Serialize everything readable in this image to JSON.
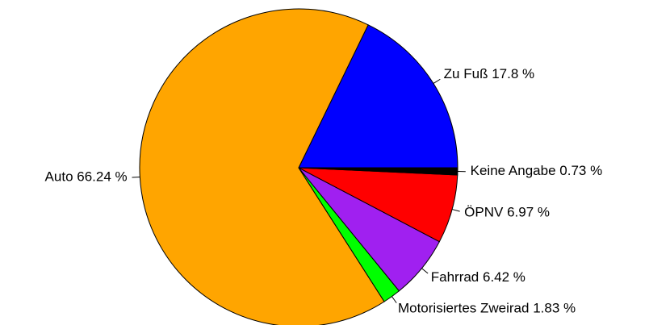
{
  "chart_data": {
    "type": "pie",
    "categories": [
      "Zu Fuß",
      "Auto",
      "Motorisiertes Zweirad",
      "Fahrrad",
      "ÖPNV",
      "Keine Angabe"
    ],
    "values": [
      17.8,
      66.24,
      1.83,
      6.42,
      6.97,
      0.73
    ],
    "value_labels": [
      "17.8 %",
      "66.24 %",
      "1.83 %",
      "6.42 %",
      "6.97 %",
      "0.73 %"
    ],
    "colors": [
      "#0000ff",
      "#ffa500",
      "#00ff00",
      "#a020f0",
      "#ff0000",
      "#000000"
    ]
  }
}
